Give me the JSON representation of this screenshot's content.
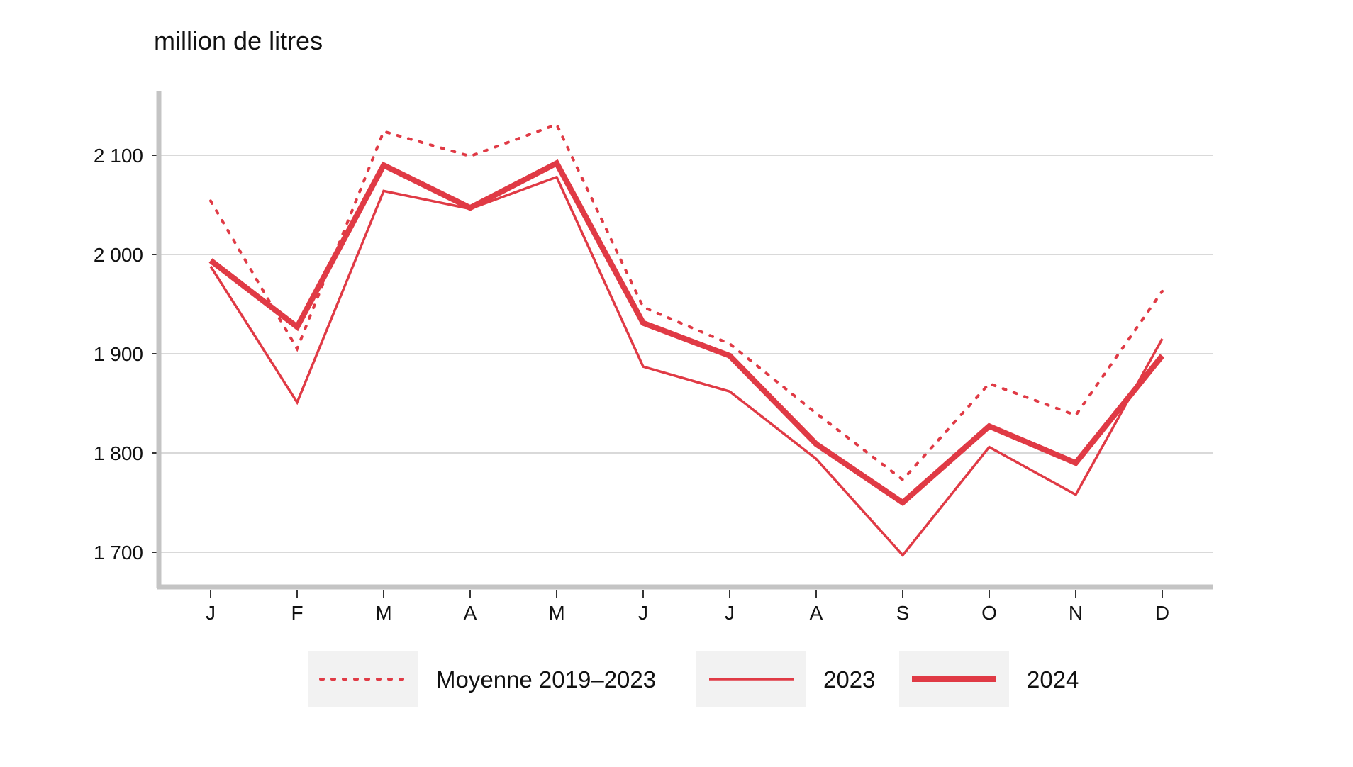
{
  "chart_data": {
    "type": "line",
    "ylabel": "million de litres",
    "xlabel": "",
    "categories": [
      "J",
      "F",
      "M",
      "A",
      "M",
      "J",
      "J",
      "A",
      "S",
      "O",
      "N",
      "D"
    ],
    "ylim": [
      1665,
      2165
    ],
    "yticks": [
      1700,
      1800,
      1900,
      2000,
      2100
    ],
    "ytick_labels": [
      "1 700",
      "1 800",
      "1 900",
      "2 000",
      "2 100"
    ],
    "grid": "horizontal",
    "legend_position": "bottom",
    "series": [
      {
        "name": "Moyenne 2019–2023",
        "style": "dotted",
        "color": "#e03a45",
        "values": [
          2054,
          1905,
          2124,
          2099,
          2131,
          1947,
          1910,
          1840,
          1773,
          1870,
          1838,
          1963
        ]
      },
      {
        "name": "2023",
        "style": "thin",
        "color": "#e03a45",
        "values": [
          1988,
          1851,
          2064,
          2046,
          2078,
          1887,
          1862,
          1794,
          1697,
          1806,
          1758,
          1915
        ]
      },
      {
        "name": "2024",
        "style": "thick",
        "color": "#e03a45",
        "values": [
          1994,
          1927,
          2090,
          2047,
          2092,
          1931,
          1898,
          1809,
          1750,
          1827,
          1790,
          1898
        ]
      }
    ]
  }
}
